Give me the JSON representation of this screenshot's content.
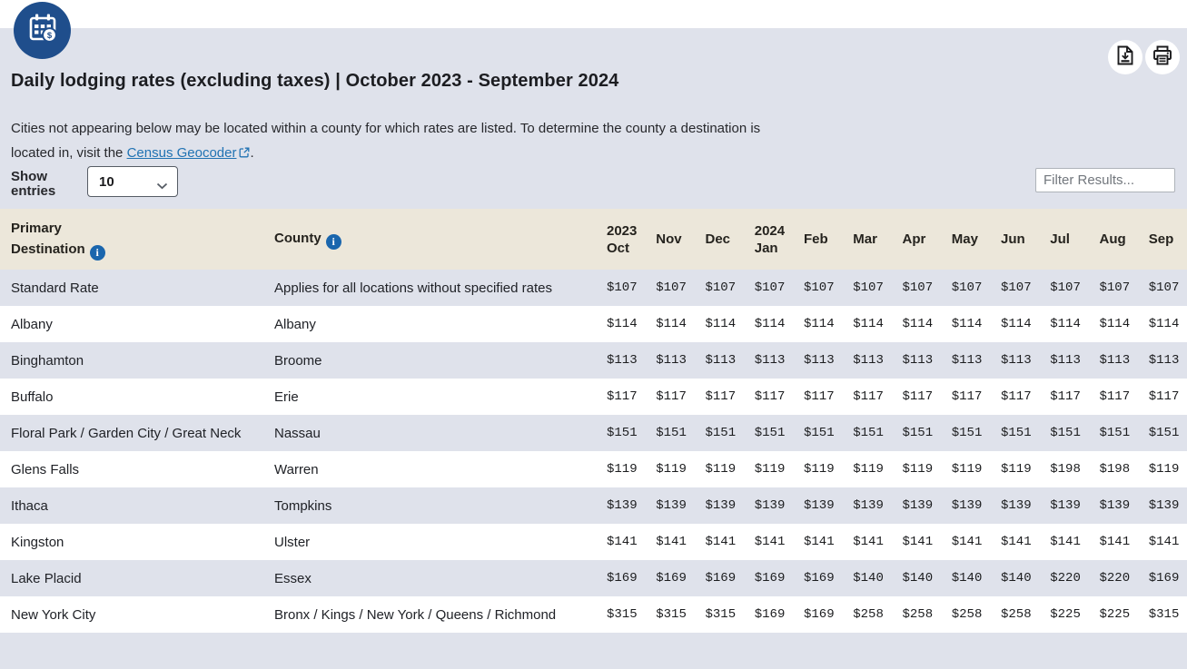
{
  "header": {
    "title": "Daily lodging rates (excluding taxes) | October 2023 - September 2024",
    "logo_coin_text": "$",
    "actions": [
      {
        "key": "download",
        "icon": "download-icon"
      },
      {
        "key": "print",
        "icon": "printer-icon"
      }
    ]
  },
  "description": {
    "text_before": "Cities not appearing below may be located within a county for which rates are listed. To determine the county a destination is located in, visit the ",
    "link_text": "Census Geocoder",
    "text_after": "."
  },
  "controls": {
    "show_entries_label": "Show entries",
    "entries_value": "10",
    "filter_placeholder": "Filter Results..."
  },
  "table": {
    "info_glyph": "i",
    "columns": [
      {
        "key": "destination",
        "label": "Primary Destination",
        "info": true
      },
      {
        "key": "county",
        "label": "County",
        "info": true
      },
      {
        "key": "oct",
        "year": "2023",
        "label": "Oct"
      },
      {
        "key": "nov",
        "label": "Nov"
      },
      {
        "key": "dec",
        "label": "Dec"
      },
      {
        "key": "jan",
        "year": "2024",
        "label": "Jan"
      },
      {
        "key": "feb",
        "label": "Feb"
      },
      {
        "key": "mar",
        "label": "Mar"
      },
      {
        "key": "apr",
        "label": "Apr"
      },
      {
        "key": "may",
        "label": "May"
      },
      {
        "key": "jun",
        "label": "Jun"
      },
      {
        "key": "jul",
        "label": "Jul"
      },
      {
        "key": "aug",
        "label": "Aug"
      },
      {
        "key": "sep",
        "label": "Sep"
      }
    ],
    "rows": [
      {
        "destination": "Standard Rate",
        "county": "Applies for all locations without specified rates",
        "rates": [
          "$107",
          "$107",
          "$107",
          "$107",
          "$107",
          "$107",
          "$107",
          "$107",
          "$107",
          "$107",
          "$107",
          "$107"
        ]
      },
      {
        "destination": "Albany",
        "county": "Albany",
        "rates": [
          "$114",
          "$114",
          "$114",
          "$114",
          "$114",
          "$114",
          "$114",
          "$114",
          "$114",
          "$114",
          "$114",
          "$114"
        ]
      },
      {
        "destination": "Binghamton",
        "county": "Broome",
        "rates": [
          "$113",
          "$113",
          "$113",
          "$113",
          "$113",
          "$113",
          "$113",
          "$113",
          "$113",
          "$113",
          "$113",
          "$113"
        ]
      },
      {
        "destination": "Buffalo",
        "county": "Erie",
        "rates": [
          "$117",
          "$117",
          "$117",
          "$117",
          "$117",
          "$117",
          "$117",
          "$117",
          "$117",
          "$117",
          "$117",
          "$117"
        ]
      },
      {
        "destination": "Floral Park / Garden City / Great Neck",
        "county": "Nassau",
        "rates": [
          "$151",
          "$151",
          "$151",
          "$151",
          "$151",
          "$151",
          "$151",
          "$151",
          "$151",
          "$151",
          "$151",
          "$151"
        ]
      },
      {
        "destination": "Glens Falls",
        "county": "Warren",
        "rates": [
          "$119",
          "$119",
          "$119",
          "$119",
          "$119",
          "$119",
          "$119",
          "$119",
          "$119",
          "$198",
          "$198",
          "$119"
        ]
      },
      {
        "destination": "Ithaca",
        "county": "Tompkins",
        "rates": [
          "$139",
          "$139",
          "$139",
          "$139",
          "$139",
          "$139",
          "$139",
          "$139",
          "$139",
          "$139",
          "$139",
          "$139"
        ]
      },
      {
        "destination": "Kingston",
        "county": "Ulster",
        "rates": [
          "$141",
          "$141",
          "$141",
          "$141",
          "$141",
          "$141",
          "$141",
          "$141",
          "$141",
          "$141",
          "$141",
          "$141"
        ]
      },
      {
        "destination": "Lake Placid",
        "county": "Essex",
        "rates": [
          "$169",
          "$169",
          "$169",
          "$169",
          "$169",
          "$140",
          "$140",
          "$140",
          "$140",
          "$220",
          "$220",
          "$169"
        ]
      },
      {
        "destination": "New York City",
        "county": "Bronx / Kings / New York / Queens / Richmond",
        "rates": [
          "$315",
          "$315",
          "$315",
          "$169",
          "$169",
          "$258",
          "$258",
          "$258",
          "$258",
          "$225",
          "$225",
          "$315"
        ]
      }
    ]
  },
  "colors": {
    "panel_bg": "#dfe2eb",
    "table_header_bg": "#ece7da",
    "row_alt_bg": "#dfe2eb",
    "logo_blue": "#1f4e8c",
    "info_icon_blue": "#1a66ad",
    "link_blue": "#2173b3",
    "text_dark": "#1c1d21"
  }
}
